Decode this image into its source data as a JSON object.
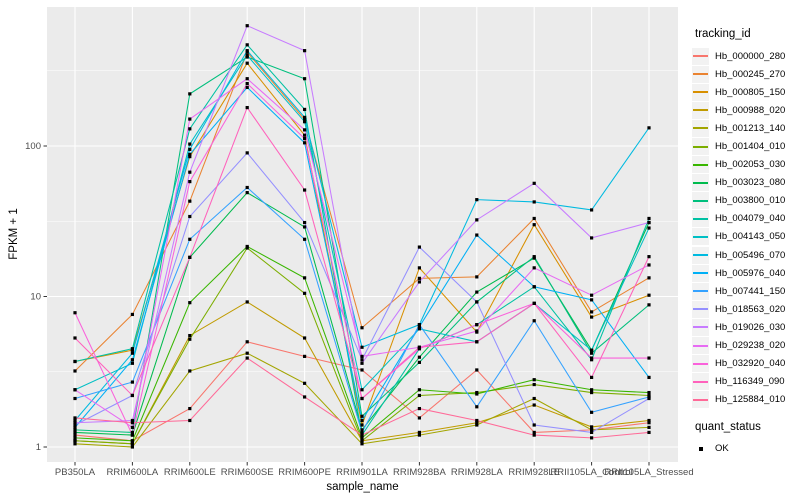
{
  "chart_data": {
    "type": "line",
    "title": "",
    "xlabel": "sample_name",
    "ylabel": "FPKM + 1",
    "y_scale": "log10",
    "y_ticks": [
      1,
      10,
      100
    ],
    "y_minor_ticks": [
      3.162,
      31.62,
      316.2
    ],
    "ylim": [
      0.8,
      800
    ],
    "grid": true,
    "panel_bg": "#EBEBEB",
    "grid_color": "#FFFFFF",
    "tick_color": "#333333",
    "axis_text_color": "#4D4D4D",
    "point_color": "#000000",
    "legend": {
      "title": "tracking_id",
      "position": "right"
    },
    "quant_legend": {
      "title": "quant_status",
      "items": [
        {
          "label": "OK",
          "shape": "filled-square"
        }
      ]
    },
    "x_categories": [
      "PB350LA",
      "RRIM600LA",
      "RRIM600LE",
      "RRIM600SE",
      "RRIM600PE",
      "RRIM901LA",
      "RRIM928BA",
      "RRIM928LA",
      "RRIM928LE",
      "RRII105LA_Control",
      "RRII105LA_Stressed"
    ],
    "series": [
      {
        "name": "Hb_000000_280",
        "color": "#F8766D",
        "values": [
          1.2,
          1.1,
          1.8,
          5.0,
          4.0,
          3.25,
          1.56,
          3.25,
          1.25,
          1.3,
          1.45
        ]
      },
      {
        "name": "Hb_000245_270",
        "color": "#EA8331",
        "values": [
          3.2,
          7.6,
          43,
          420,
          150,
          6.2,
          13.2,
          13.5,
          33,
          7.9,
          13.3
        ]
      },
      {
        "name": "Hb_000805_150",
        "color": "#D89000",
        "values": [
          3.7,
          4.4,
          85,
          355,
          118,
          1.4,
          15.5,
          5.8,
          30,
          7.3,
          10.2
        ]
      },
      {
        "name": "Hb_000988_020",
        "color": "#C09B00",
        "values": [
          1.1,
          1.05,
          5.5,
          9.2,
          5.3,
          1.1,
          1.25,
          1.45,
          1.9,
          1.36,
          1.5
        ]
      },
      {
        "name": "Hb_001213_140",
        "color": "#A3A500",
        "values": [
          1.05,
          1.0,
          3.2,
          4.2,
          2.65,
          1.05,
          1.2,
          1.4,
          2.1,
          1.3,
          1.35
        ]
      },
      {
        "name": "Hb_001404_010",
        "color": "#7CAE00",
        "values": [
          1.1,
          1.05,
          5.2,
          21,
          10.5,
          1.1,
          2.2,
          2.3,
          2.6,
          2.3,
          2.2
        ]
      },
      {
        "name": "Hb_002053_030",
        "color": "#39B600",
        "values": [
          1.15,
          1.1,
          9.1,
          21.5,
          13.3,
          1.15,
          2.4,
          2.25,
          2.8,
          2.4,
          2.3
        ]
      },
      {
        "name": "Hb_003023_080",
        "color": "#00BB4E",
        "values": [
          1.25,
          1.2,
          18.2,
          49,
          29,
          1.3,
          3.95,
          10.7,
          18,
          4.4,
          31
        ]
      },
      {
        "name": "Hb_003800_010",
        "color": "#00BF7D",
        "values": [
          1.3,
          1.25,
          222,
          390,
          280,
          1.6,
          3.65,
          9.2,
          18.4,
          4.2,
          8.8
        ]
      },
      {
        "name": "Hb_004079_040",
        "color": "#00C1A3",
        "values": [
          3.7,
          4.5,
          130,
          470,
          175,
          1.2,
          4.5,
          6.5,
          11.6,
          3.8,
          33
        ]
      },
      {
        "name": "Hb_004143_050",
        "color": "#00BFC4",
        "values": [
          2.4,
          3.6,
          103,
          400,
          145,
          2.4,
          6.1,
          5.0,
          9.0,
          4.4,
          28.5
        ]
      },
      {
        "name": "Hb_005496_070",
        "color": "#00BAE0",
        "values": [
          1.5,
          4.2,
          95,
          430,
          155,
          4.6,
          6.5,
          44,
          42.5,
          37.6,
          132
        ]
      },
      {
        "name": "Hb_005976_040",
        "color": "#00B0F6",
        "values": [
          1.35,
          3.8,
          88,
          245,
          105,
          1.5,
          6.3,
          25.6,
          11.6,
          9.5,
          2.9
        ]
      },
      {
        "name": "Hb_007441_150",
        "color": "#35A2FF",
        "values": [
          2.1,
          2.7,
          24,
          53,
          24,
          1.25,
          6.5,
          1.85,
          6.9,
          1.7,
          2.15
        ]
      },
      {
        "name": "Hb_018563_020",
        "color": "#9590FF",
        "values": [
          1.4,
          2.2,
          34,
          90,
          31,
          3.8,
          21.3,
          9.2,
          1.4,
          1.25,
          2.1
        ]
      },
      {
        "name": "Hb_019026_030",
        "color": "#C77CFF",
        "values": [
          1.45,
          1.5,
          67,
          630,
          430,
          3.6,
          12.5,
          32.3,
          56.5,
          24.5,
          31
        ]
      },
      {
        "name": "Hb_029238_020",
        "color": "#E76BF3",
        "values": [
          2.4,
          1.35,
          151,
          280,
          128,
          4.0,
          4.6,
          5.9,
          15.5,
          10.2,
          16.2
        ]
      },
      {
        "name": "Hb_032920_040",
        "color": "#FA62DB",
        "values": [
          7.8,
          1.2,
          58,
          260,
          112,
          2.1,
          4.5,
          6.5,
          9.0,
          3.9,
          3.9
        ]
      },
      {
        "name": "Hb_116349_090",
        "color": "#FF62BC",
        "values": [
          5.3,
          2.2,
          18.2,
          180,
          51,
          2.1,
          4.6,
          5.0,
          9.0,
          2.9,
          18.4
        ]
      },
      {
        "name": "Hb_125884_010",
        "color": "#FF6A98",
        "values": [
          1.56,
          1.45,
          1.5,
          3.9,
          2.15,
          1.2,
          1.8,
          1.5,
          1.2,
          1.15,
          1.25
        ]
      }
    ]
  }
}
